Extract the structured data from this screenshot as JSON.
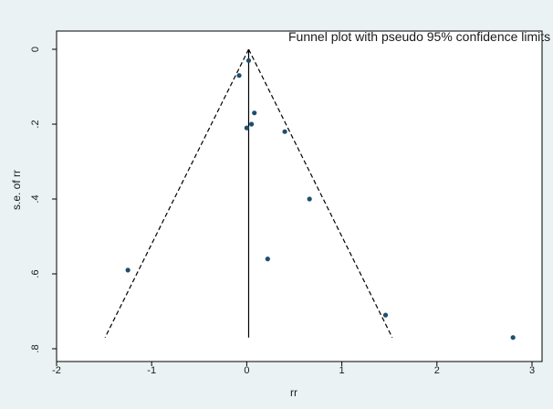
{
  "chart_data": {
    "type": "scatter",
    "title": "Funnel plot with pseudo 95% confidence limits",
    "xlabel": "rr",
    "ylabel": "s.e. of rr",
    "xlim": [
      -2,
      3
    ],
    "ylim": [
      0,
      0.8
    ],
    "y_reversed": true,
    "grid": false,
    "legend": "none",
    "x_ticks": [
      -2,
      -1,
      0,
      1,
      2,
      3
    ],
    "x_tick_labels": [
      "-2",
      "-1",
      "0",
      "1",
      "2",
      "3"
    ],
    "y_ticks": [
      0,
      0.2,
      0.4,
      0.6,
      0.8
    ],
    "y_tick_labels": [
      "0",
      ".2",
      ".4",
      ".6",
      ".8"
    ],
    "pooled_estimate": 0.02,
    "confidence_lines": {
      "apex": [
        0.02,
        0
      ],
      "left_end": [
        -1.49,
        0.77
      ],
      "right_end": [
        1.53,
        0.77
      ]
    },
    "points": [
      {
        "x": 0.02,
        "y": 0.03
      },
      {
        "x": -0.08,
        "y": 0.07
      },
      {
        "x": 0.08,
        "y": 0.17
      },
      {
        "x": 0.05,
        "y": 0.2
      },
      {
        "x": 0.0,
        "y": 0.21
      },
      {
        "x": 0.4,
        "y": 0.22
      },
      {
        "x": 0.66,
        "y": 0.4
      },
      {
        "x": 0.22,
        "y": 0.56
      },
      {
        "x": -1.25,
        "y": 0.59
      },
      {
        "x": 1.46,
        "y": 0.71
      },
      {
        "x": 2.8,
        "y": 0.77
      }
    ],
    "colors": {
      "background": "#eaf2f3",
      "plot_area": "#ffffff",
      "marker": "#1f4e6e",
      "line": "#000000"
    }
  }
}
